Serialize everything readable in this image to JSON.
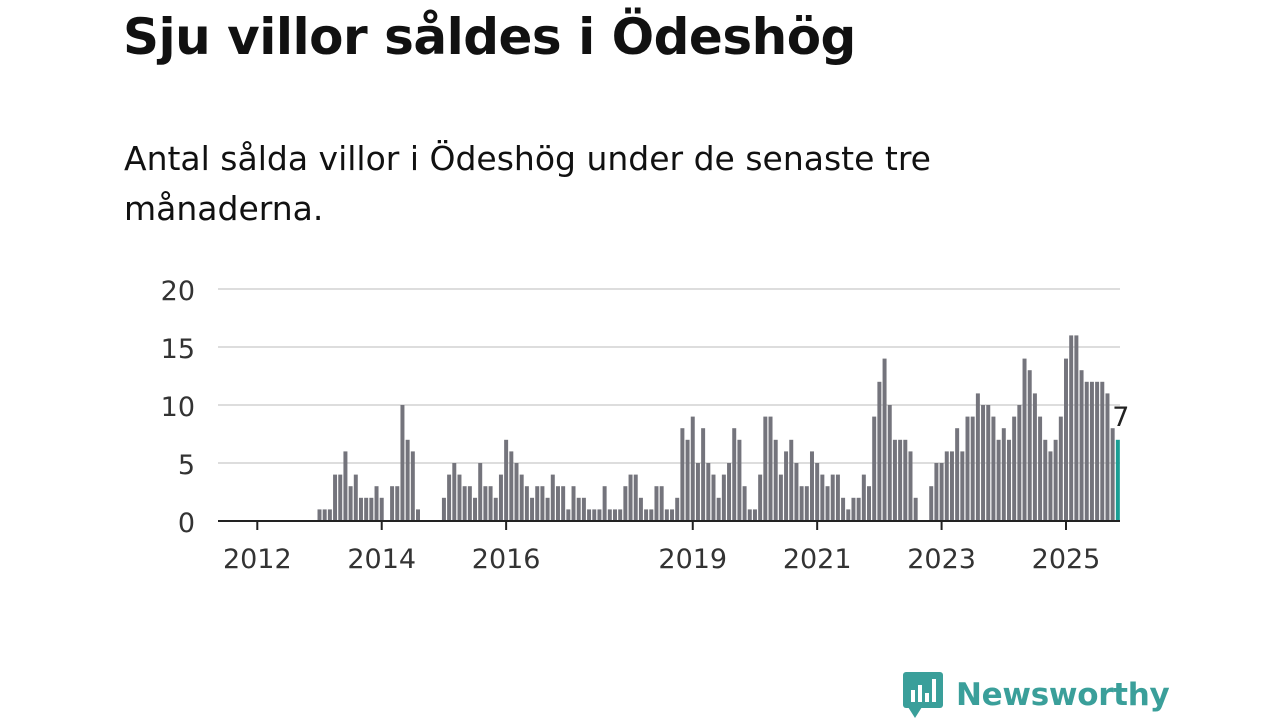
{
  "title": "Sju villor såldes i Ödeshög",
  "subtitle": "Antal sålda villor i Ödeshög under de senaste tre månaderna.",
  "brand": {
    "name": "Newsworthy",
    "icon": "newsworthy-logo-icon",
    "color": "#3a9f9a"
  },
  "colors": {
    "bar": "#74747c",
    "highlight": "#1a9e94",
    "grid": "#dddddd",
    "axis": "#222222"
  },
  "chart_data": {
    "type": "bar",
    "x_start": "2012-01",
    "x_interval": "month",
    "values": [
      0,
      0,
      0,
      0,
      0,
      0,
      0,
      0,
      0,
      0,
      0,
      0,
      1,
      1,
      1,
      4,
      4,
      6,
      3,
      4,
      2,
      2,
      2,
      3,
      2,
      0,
      3,
      3,
      10,
      7,
      6,
      1,
      0,
      0,
      0,
      0,
      2,
      4,
      5,
      4,
      3,
      3,
      2,
      5,
      3,
      3,
      2,
      4,
      7,
      6,
      5,
      4,
      3,
      2,
      3,
      3,
      2,
      4,
      3,
      3,
      1,
      3,
      2,
      2,
      1,
      1,
      1,
      3,
      1,
      1,
      1,
      3,
      4,
      4,
      2,
      1,
      1,
      3,
      3,
      1,
      1,
      2,
      8,
      7,
      9,
      5,
      8,
      5,
      4,
      2,
      4,
      5,
      8,
      7,
      3,
      1,
      1,
      4,
      9,
      9,
      7,
      4,
      6,
      7,
      5,
      3,
      3,
      6,
      5,
      4,
      3,
      4,
      4,
      2,
      1,
      2,
      2,
      4,
      3,
      9,
      12,
      14,
      10,
      7,
      7,
      7,
      6,
      2,
      0,
      0,
      3,
      5,
      5,
      6,
      6,
      8,
      6,
      9,
      9,
      11,
      10,
      10,
      9,
      7,
      8,
      7,
      9,
      10,
      14,
      13,
      11,
      9,
      7,
      6,
      7,
      9,
      14,
      16,
      16,
      13,
      12,
      12,
      12,
      12,
      11,
      8,
      7
    ],
    "highlight_last": true,
    "data_label": "7",
    "ylim": [
      0,
      20
    ],
    "yticks": [
      0,
      5,
      10,
      15,
      20
    ],
    "xticks": [
      {
        "label": "2012",
        "month_index": 0
      },
      {
        "label": "2014",
        "month_index": 24
      },
      {
        "label": "2016",
        "month_index": 48
      },
      {
        "label": "2019",
        "month_index": 84
      },
      {
        "label": "2021",
        "month_index": 108
      },
      {
        "label": "2023",
        "month_index": 132
      },
      {
        "label": "2025",
        "month_index": 156
      }
    ],
    "grid": true,
    "xlabel": "",
    "ylabel": ""
  }
}
